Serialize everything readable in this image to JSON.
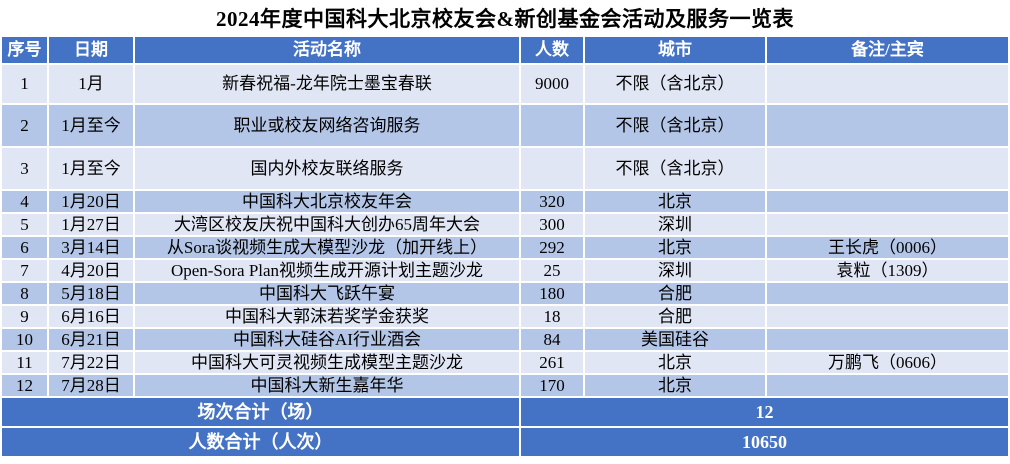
{
  "chart_data": {
    "type": "table",
    "title": "2024年度中国科大北京校友会&新创基金会活动及服务一览表",
    "columns": [
      "序号",
      "日期",
      "活动名称",
      "人数",
      "城市",
      "备注/主宾"
    ],
    "rows": [
      [
        "1",
        "1月",
        "新春祝福-龙年院士墨宝春联",
        "9000",
        "不限（含北京）",
        ""
      ],
      [
        "2",
        "1月至今",
        "职业或校友网络咨询服务",
        "",
        "不限（含北京）",
        ""
      ],
      [
        "3",
        "1月至今",
        "国内外校友联络服务",
        "",
        "不限（含北京）",
        ""
      ],
      [
        "4",
        "1月20日",
        "中国科大北京校友年会",
        "320",
        "北京",
        ""
      ],
      [
        "5",
        "1月27日",
        "大湾区校友庆祝中国科大创办65周年大会",
        "300",
        "深圳",
        ""
      ],
      [
        "6",
        "3月14日",
        "从Sora谈视频生成大模型沙龙（加开线上）",
        "292",
        "北京",
        "王长虎（0006）"
      ],
      [
        "7",
        "4月20日",
        "Open-Sora Plan视频生成开源计划主题沙龙",
        "25",
        "深圳",
        "袁粒（1309）"
      ],
      [
        "8",
        "5月18日",
        "中国科大飞跃午宴",
        "180",
        "合肥",
        ""
      ],
      [
        "9",
        "6月16日",
        "中国科大郭沫若奖学金获奖",
        "18",
        "合肥",
        ""
      ],
      [
        "10",
        "6月21日",
        "中国科大硅谷AI行业酒会",
        "84",
        "美国硅谷",
        ""
      ],
      [
        "11",
        "7月22日",
        "中国科大可灵视频生成模型主题沙龙",
        "261",
        "北京",
        "万鹏飞（0606）"
      ],
      [
        "12",
        "7月28日",
        "中国科大新生嘉年华",
        "170",
        "北京",
        ""
      ]
    ],
    "footer": [
      {
        "label": "场次合计（场）",
        "value": "12"
      },
      {
        "label": "人数合计（人次）",
        "value": "10650"
      }
    ],
    "layout": {
      "banding": "alternating",
      "footer_value_spans": "人数+城市+备注/主宾"
    }
  },
  "colors": {
    "header_bg": "#4472C4",
    "footer_bg": "#4472C4",
    "band_light": "#E1E6F4",
    "band_medium": "#B4C6E7",
    "border": "#FFFFFF",
    "header_text": "#FFFFFF",
    "body_text": "#000000"
  }
}
